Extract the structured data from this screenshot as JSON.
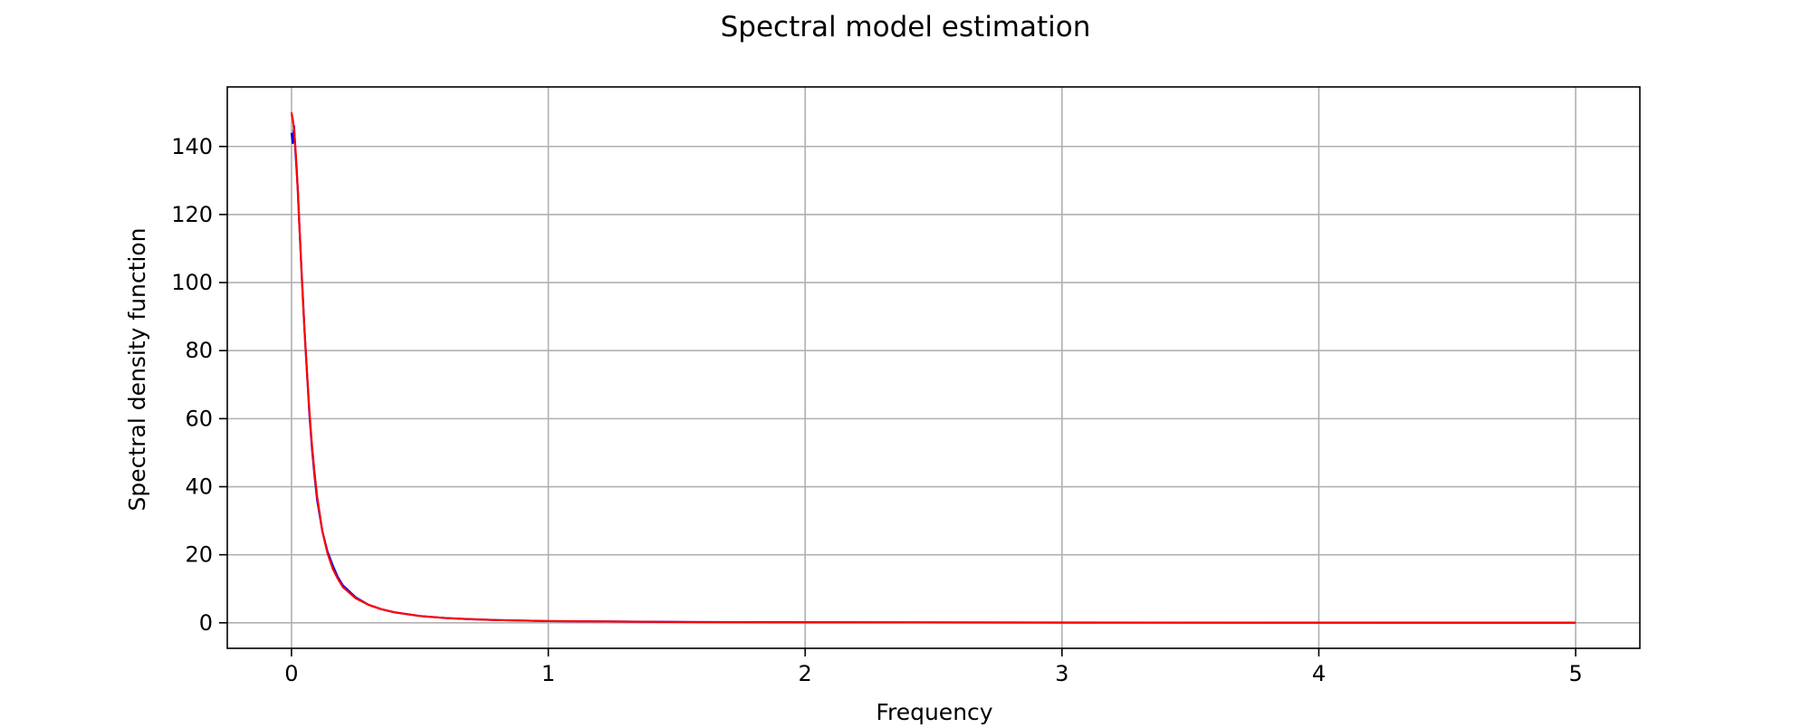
{
  "chart_data": {
    "type": "line",
    "title": "Spectral model estimation",
    "xlabel": "Frequency",
    "ylabel": "Spectral density function",
    "xlim": [
      -0.25,
      5.25
    ],
    "ylim": [
      -7.5,
      157.5
    ],
    "xticks": [
      0,
      1,
      2,
      3,
      4,
      5
    ],
    "xtick_labels": [
      "0",
      "1",
      "2",
      "3",
      "4",
      "5"
    ],
    "yticks": [
      0,
      20,
      40,
      60,
      80,
      100,
      120,
      140
    ],
    "ytick_labels": [
      "0",
      "20",
      "40",
      "60",
      "80",
      "100",
      "120",
      "140"
    ],
    "grid": true,
    "legend": "none",
    "series": [
      {
        "color": "#0000ff",
        "points": [
          [
            0.0,
            144
          ],
          [
            0.005,
            141
          ],
          [
            0.01,
            146
          ],
          [
            0.015,
            139
          ],
          [
            0.02,
            133
          ],
          [
            0.025,
            127
          ],
          [
            0.03,
            118
          ],
          [
            0.035,
            110
          ],
          [
            0.04,
            102
          ],
          [
            0.045,
            95
          ],
          [
            0.05,
            87
          ],
          [
            0.06,
            74
          ],
          [
            0.07,
            61
          ],
          [
            0.08,
            51
          ],
          [
            0.09,
            43
          ],
          [
            0.1,
            36
          ],
          [
            0.12,
            27
          ],
          [
            0.14,
            21
          ],
          [
            0.16,
            17
          ],
          [
            0.18,
            13.5
          ],
          [
            0.2,
            11
          ],
          [
            0.25,
            7.5
          ],
          [
            0.3,
            5.3
          ],
          [
            0.35,
            4.0
          ],
          [
            0.4,
            3.1
          ],
          [
            0.5,
            2.0
          ],
          [
            0.6,
            1.4
          ],
          [
            0.7,
            1.05
          ],
          [
            0.8,
            0.8
          ],
          [
            1.0,
            0.5
          ],
          [
            1.5,
            0.25
          ],
          [
            2.0,
            0.15
          ],
          [
            3.0,
            0.08
          ],
          [
            4.0,
            0.05
          ],
          [
            5.0,
            0.03
          ]
        ]
      },
      {
        "color": "#ff0000",
        "points": [
          [
            0.0,
            150
          ],
          [
            0.005,
            148
          ],
          [
            0.01,
            145
          ],
          [
            0.015,
            140
          ],
          [
            0.02,
            134
          ],
          [
            0.025,
            126
          ],
          [
            0.03,
            118
          ],
          [
            0.035,
            110
          ],
          [
            0.04,
            102
          ],
          [
            0.045,
            94
          ],
          [
            0.05,
            87
          ],
          [
            0.06,
            74
          ],
          [
            0.07,
            62
          ],
          [
            0.08,
            52
          ],
          [
            0.09,
            44
          ],
          [
            0.1,
            37
          ],
          [
            0.12,
            27
          ],
          [
            0.14,
            20.5
          ],
          [
            0.16,
            16
          ],
          [
            0.18,
            13
          ],
          [
            0.2,
            10.5
          ],
          [
            0.25,
            7.2
          ],
          [
            0.3,
            5.3
          ],
          [
            0.35,
            4.0
          ],
          [
            0.4,
            3.1
          ],
          [
            0.5,
            2.0
          ],
          [
            0.6,
            1.4
          ],
          [
            0.7,
            1.05
          ],
          [
            0.8,
            0.8
          ],
          [
            1.0,
            0.5
          ],
          [
            1.5,
            0.23
          ],
          [
            2.0,
            0.13
          ],
          [
            3.0,
            0.06
          ],
          [
            4.0,
            0.035
          ],
          [
            5.0,
            0.02
          ]
        ]
      }
    ]
  }
}
